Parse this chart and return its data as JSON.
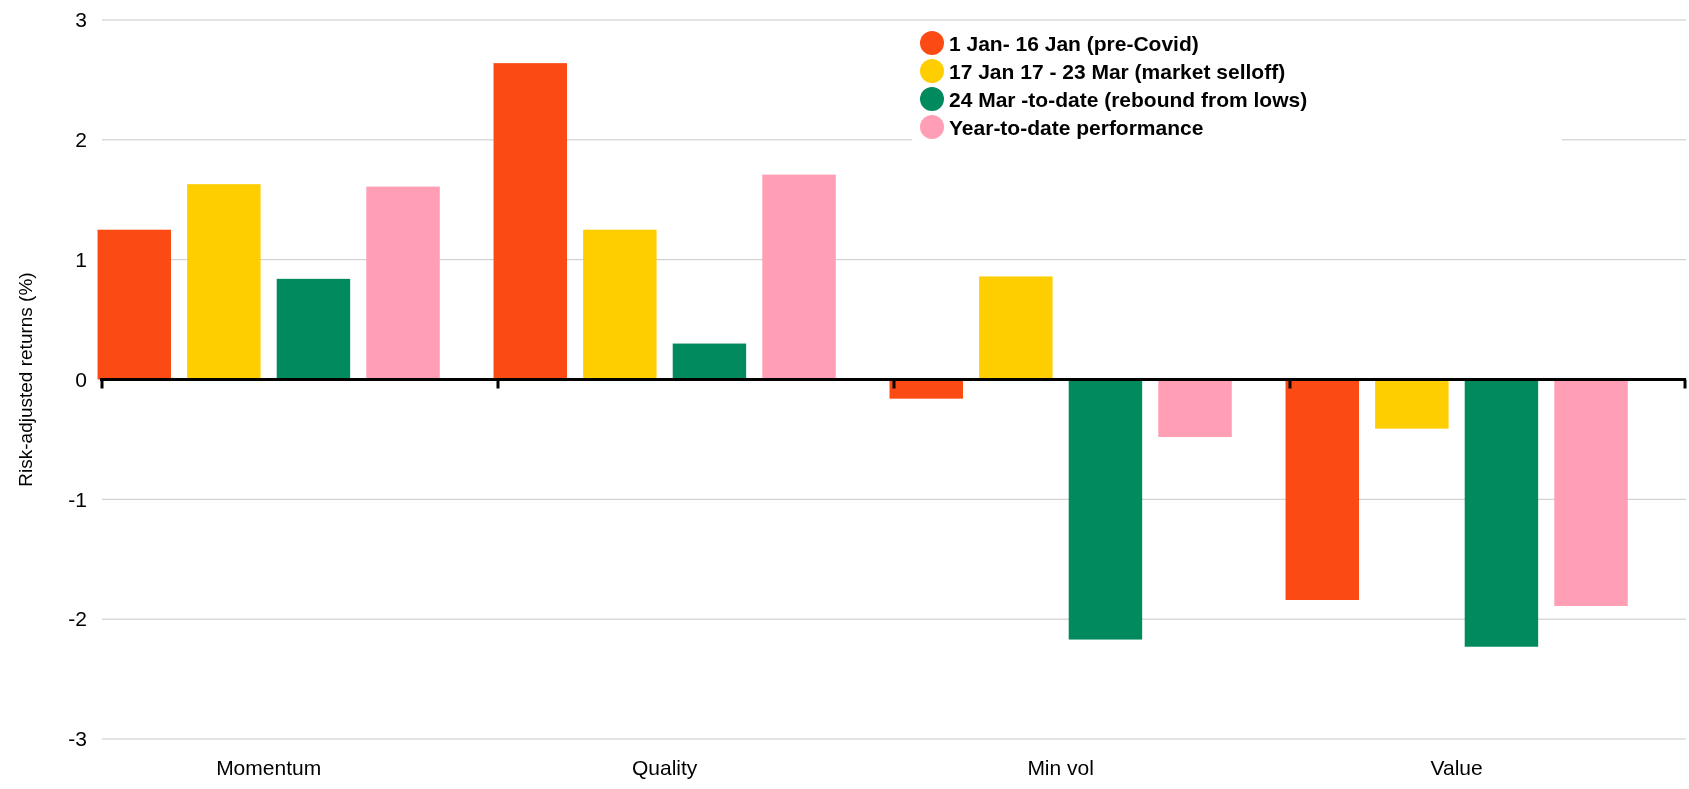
{
  "chart_data": {
    "type": "bar",
    "ylabel": "Risk-adjusted returns (%)",
    "categories": [
      "Momentum",
      "Quality",
      "Min vol",
      "Value"
    ],
    "series": [
      {
        "name": "1 Jan- 16 Jan (pre-Covid)",
        "color": "#fc4a14",
        "values": [
          1.25,
          2.64,
          -0.16,
          -1.84
        ]
      },
      {
        "name": "17 Jan 17 - 23 Mar (market selloff)",
        "color": "#ffce00",
        "values": [
          1.63,
          1.25,
          0.86,
          -0.41
        ]
      },
      {
        "name": "24 Mar -to-date (rebound from lows)",
        "color": "#008a5e",
        "values": [
          0.84,
          0.3,
          -2.17,
          -2.23
        ]
      },
      {
        "name": "Year-to-date performance",
        "color": "#ff9eb5",
        "values": [
          1.61,
          1.71,
          -0.48,
          -1.89
        ]
      }
    ],
    "ylim": [
      -3,
      3
    ],
    "yticks": [
      -3,
      -2,
      -1,
      0,
      1,
      2,
      3
    ],
    "grid": "y",
    "legend": "top right"
  }
}
